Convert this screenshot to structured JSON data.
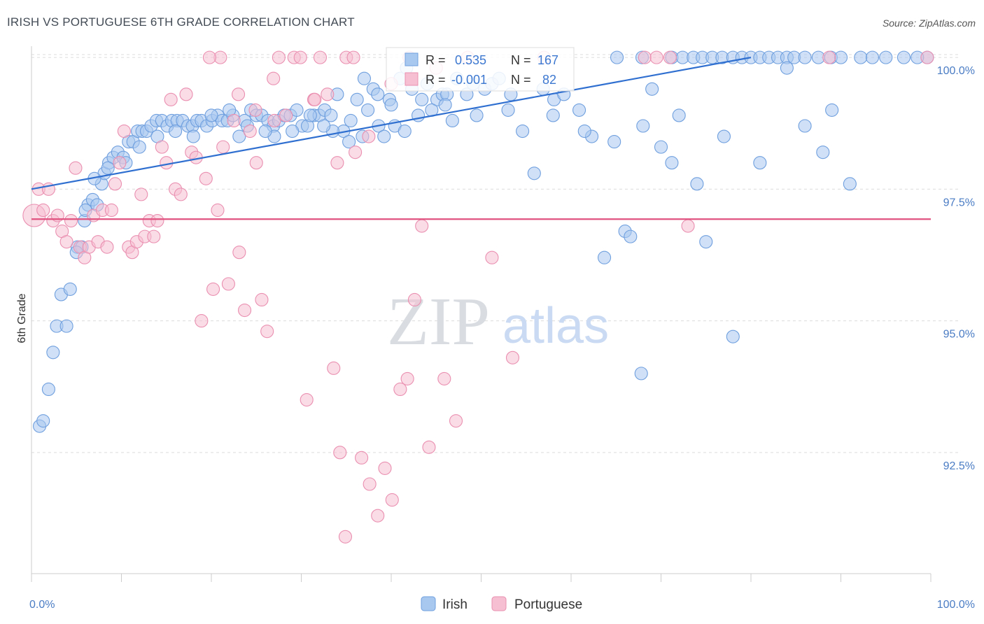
{
  "title": "IRISH VS PORTUGUESE 6TH GRADE CORRELATION CHART",
  "source": "Source: ZipAtlas.com",
  "watermark": {
    "zip": "ZIP",
    "atlas": "atlas"
  },
  "chart_data": {
    "type": "scatter",
    "title": "IRISH VS PORTUGUESE 6TH GRADE CORRELATION CHART",
    "xlabel": "",
    "ylabel": "6th Grade",
    "xlim": [
      0,
      100
    ],
    "ylim": [
      90.2,
      100.4
    ],
    "x_tick_labels": [
      "0.0%",
      "100.0%"
    ],
    "y_ticks": [
      {
        "value": 92.5,
        "label": "92.5%"
      },
      {
        "value": 95.0,
        "label": "95.0%"
      },
      {
        "value": 97.5,
        "label": "97.5%"
      },
      {
        "value": 100.0,
        "label": "100.0%"
      }
    ],
    "grid": true,
    "legend_placement": "top-center",
    "series": [
      {
        "name": "Irish",
        "color": "#a9c8f0",
        "edge": "#6f9fde",
        "R": "0.535",
        "N": "167",
        "trend": {
          "x": [
            0,
            80
          ],
          "y": [
            97.5,
            100.0
          ],
          "color": "#2f6fd0"
        },
        "points": [
          [
            0.9,
            93.0
          ],
          [
            1.3,
            93.1
          ],
          [
            1.9,
            93.7
          ],
          [
            2.4,
            94.4
          ],
          [
            2.8,
            94.9
          ],
          [
            3.3,
            95.5
          ],
          [
            3.9,
            94.9
          ],
          [
            4.3,
            95.6
          ],
          [
            5.1,
            96.4
          ],
          [
            5.6,
            96.4
          ],
          [
            5.9,
            96.9
          ],
          [
            6.3,
            97.2
          ],
          [
            6.8,
            97.3
          ],
          [
            7.3,
            97.2
          ],
          [
            7.8,
            97.6
          ],
          [
            8.1,
            97.8
          ],
          [
            8.6,
            98.0
          ],
          [
            9.1,
            98.1
          ],
          [
            9.6,
            98.2
          ],
          [
            10.2,
            98.1
          ],
          [
            10.8,
            98.4
          ],
          [
            11.3,
            98.4
          ],
          [
            11.8,
            98.6
          ],
          [
            12.3,
            98.6
          ],
          [
            12.8,
            98.6
          ],
          [
            13.3,
            98.7
          ],
          [
            13.9,
            98.8
          ],
          [
            14.5,
            98.8
          ],
          [
            15.1,
            98.7
          ],
          [
            15.6,
            98.8
          ],
          [
            16.2,
            98.8
          ],
          [
            16.8,
            98.8
          ],
          [
            17.4,
            98.7
          ],
          [
            17.9,
            98.7
          ],
          [
            18.4,
            98.8
          ],
          [
            18.9,
            98.8
          ],
          [
            19.5,
            98.7
          ],
          [
            20.1,
            98.8
          ],
          [
            20.7,
            98.9
          ],
          [
            21.2,
            98.8
          ],
          [
            21.8,
            98.8
          ],
          [
            22.4,
            98.9
          ],
          [
            23.1,
            98.5
          ],
          [
            23.7,
            98.8
          ],
          [
            24.4,
            99.0
          ],
          [
            25.0,
            98.9
          ],
          [
            25.6,
            98.9
          ],
          [
            26.3,
            98.8
          ],
          [
            26.9,
            98.7
          ],
          [
            27.5,
            98.8
          ],
          [
            28.1,
            98.9
          ],
          [
            28.8,
            98.9
          ],
          [
            29.5,
            99.0
          ],
          [
            30.1,
            98.7
          ],
          [
            30.7,
            98.7
          ],
          [
            31.4,
            98.9
          ],
          [
            32.0,
            98.9
          ],
          [
            32.6,
            99.0
          ],
          [
            33.3,
            98.9
          ],
          [
            34.0,
            99.3
          ],
          [
            34.7,
            98.6
          ],
          [
            35.3,
            98.4
          ],
          [
            36.2,
            99.2
          ],
          [
            36.8,
            98.5
          ],
          [
            37.4,
            99.0
          ],
          [
            38.0,
            99.4
          ],
          [
            38.6,
            98.7
          ],
          [
            39.2,
            98.5
          ],
          [
            39.8,
            99.2
          ],
          [
            40.4,
            98.7
          ],
          [
            41.0,
            99.6
          ],
          [
            41.7,
            99.8
          ],
          [
            42.3,
            99.4
          ],
          [
            43.4,
            99.2
          ],
          [
            44.0,
            99.5
          ],
          [
            45.1,
            99.2
          ],
          [
            45.7,
            99.3
          ],
          [
            46.2,
            99.3
          ],
          [
            46.8,
            98.8
          ],
          [
            47.3,
            99.6
          ],
          [
            48.4,
            99.3
          ],
          [
            49.1,
            99.5
          ],
          [
            50.4,
            99.4
          ],
          [
            51.2,
            99.5
          ],
          [
            52.0,
            99.6
          ],
          [
            53.3,
            99.3
          ],
          [
            54.6,
            98.6
          ],
          [
            55.9,
            97.8
          ],
          [
            56.9,
            99.4
          ],
          [
            58.1,
            99.2
          ],
          [
            59.2,
            99.3
          ],
          [
            60.9,
            99.0
          ],
          [
            62.3,
            98.5
          ],
          [
            63.7,
            96.2
          ],
          [
            65.1,
            100.0
          ],
          [
            66.0,
            96.7
          ],
          [
            66.6,
            96.6
          ],
          [
            67.9,
            100.0
          ],
          [
            69.0,
            99.4
          ],
          [
            70.0,
            98.3
          ],
          [
            71.2,
            100.0
          ],
          [
            72.4,
            100.0
          ],
          [
            73.6,
            100.0
          ],
          [
            74.6,
            100.0
          ],
          [
            75.7,
            100.0
          ],
          [
            76.8,
            100.0
          ],
          [
            78.0,
            100.0
          ],
          [
            79.0,
            100.0
          ],
          [
            80.0,
            100.0
          ],
          [
            81.0,
            100.0
          ],
          [
            82.0,
            100.0
          ],
          [
            83.0,
            100.0
          ],
          [
            84.0,
            100.0
          ],
          [
            84.8,
            100.0
          ],
          [
            86.0,
            100.0
          ],
          [
            87.5,
            100.0
          ],
          [
            88.9,
            100.0
          ],
          [
            90.0,
            100.0
          ],
          [
            91.0,
            97.6
          ],
          [
            92.2,
            100.0
          ],
          [
            93.5,
            100.0
          ],
          [
            95.0,
            100.0
          ],
          [
            64.8,
            98.4
          ],
          [
            67.8,
            94.0
          ],
          [
            74.0,
            97.6
          ],
          [
            77.0,
            98.5
          ],
          [
            71.2,
            98.0
          ],
          [
            61.5,
            98.6
          ],
          [
            58.0,
            98.9
          ],
          [
            97.0,
            100.0
          ],
          [
            89.0,
            99.0
          ],
          [
            84.0,
            99.8
          ],
          [
            78.0,
            94.7
          ],
          [
            75.0,
            96.5
          ],
          [
            81.0,
            98.0
          ],
          [
            68.0,
            98.7
          ],
          [
            72.0,
            98.9
          ],
          [
            86.0,
            98.7
          ],
          [
            88.0,
            98.2
          ],
          [
            53.0,
            99.0
          ],
          [
            49.5,
            98.9
          ],
          [
            46.0,
            99.1
          ],
          [
            44.5,
            99.0
          ],
          [
            43.0,
            98.9
          ],
          [
            41.5,
            98.6
          ],
          [
            40.0,
            99.1
          ],
          [
            38.5,
            99.3
          ],
          [
            37.0,
            99.6
          ],
          [
            35.5,
            98.8
          ],
          [
            33.5,
            98.6
          ],
          [
            32.5,
            98.7
          ],
          [
            31.0,
            98.9
          ],
          [
            29.0,
            98.6
          ],
          [
            27.0,
            98.5
          ],
          [
            26.0,
            98.6
          ],
          [
            24.0,
            98.7
          ],
          [
            22.0,
            99.0
          ],
          [
            20.0,
            98.9
          ],
          [
            18.0,
            98.5
          ],
          [
            16.0,
            98.6
          ],
          [
            14.0,
            98.5
          ],
          [
            12.0,
            98.3
          ],
          [
            10.5,
            98.0
          ],
          [
            8.5,
            97.9
          ],
          [
            7.0,
            97.7
          ],
          [
            6.0,
            97.1
          ],
          [
            5.0,
            96.3
          ],
          [
            99.6,
            100.0
          ],
          [
            98.5,
            100.0
          ]
        ]
      },
      {
        "name": "Portuguese",
        "color": "#f6c0d2",
        "edge": "#ea8fb0",
        "R": "-0.001",
        "N": "82",
        "trend": {
          "x": [
            0,
            100
          ],
          "y": [
            96.93,
            96.93
          ],
          "color": "#e0527f"
        },
        "points": [
          [
            0.3,
            97.0
          ],
          [
            0.8,
            97.5
          ],
          [
            1.3,
            97.1
          ],
          [
            1.9,
            97.5
          ],
          [
            2.4,
            96.9
          ],
          [
            2.9,
            97.0
          ],
          [
            3.4,
            96.7
          ],
          [
            3.9,
            96.5
          ],
          [
            4.4,
            96.9
          ],
          [
            4.9,
            97.9
          ],
          [
            5.4,
            96.4
          ],
          [
            5.9,
            96.2
          ],
          [
            6.4,
            96.4
          ],
          [
            6.9,
            97.0
          ],
          [
            7.4,
            96.5
          ],
          [
            7.9,
            97.1
          ],
          [
            8.4,
            96.4
          ],
          [
            8.9,
            97.1
          ],
          [
            9.3,
            97.6
          ],
          [
            9.8,
            98.0
          ],
          [
            10.3,
            98.6
          ],
          [
            10.8,
            96.4
          ],
          [
            11.2,
            96.3
          ],
          [
            11.7,
            96.5
          ],
          [
            12.2,
            97.4
          ],
          [
            12.6,
            96.6
          ],
          [
            13.1,
            96.9
          ],
          [
            13.6,
            96.6
          ],
          [
            14.0,
            96.9
          ],
          [
            14.5,
            98.3
          ],
          [
            15.0,
            98.0
          ],
          [
            15.5,
            99.2
          ],
          [
            16.0,
            97.5
          ],
          [
            16.6,
            97.4
          ],
          [
            17.2,
            99.3
          ],
          [
            17.8,
            98.2
          ],
          [
            18.3,
            98.1
          ],
          [
            18.9,
            95.0
          ],
          [
            19.4,
            97.7
          ],
          [
            20.2,
            95.6
          ],
          [
            20.7,
            97.1
          ],
          [
            21.3,
            98.3
          ],
          [
            21.9,
            95.7
          ],
          [
            22.5,
            98.8
          ],
          [
            23.1,
            96.3
          ],
          [
            23.7,
            95.2
          ],
          [
            24.3,
            98.6
          ],
          [
            24.9,
            99.0
          ],
          [
            25.6,
            95.4
          ],
          [
            26.2,
            94.8
          ],
          [
            26.9,
            99.6
          ],
          [
            27.5,
            100.0
          ],
          [
            28.3,
            98.9
          ],
          [
            29.2,
            100.0
          ],
          [
            29.9,
            100.0
          ],
          [
            30.6,
            93.5
          ],
          [
            31.4,
            99.2
          ],
          [
            32.1,
            100.0
          ],
          [
            32.9,
            99.3
          ],
          [
            33.6,
            94.1
          ],
          [
            34.3,
            92.5
          ],
          [
            35.0,
            100.0
          ],
          [
            35.8,
            100.0
          ],
          [
            36.7,
            92.4
          ],
          [
            37.6,
            91.9
          ],
          [
            38.5,
            91.3
          ],
          [
            39.3,
            92.2
          ],
          [
            40.1,
            91.6
          ],
          [
            41.0,
            93.7
          ],
          [
            41.8,
            93.9
          ],
          [
            42.6,
            95.4
          ],
          [
            43.4,
            96.8
          ],
          [
            44.2,
            92.6
          ],
          [
            45.0,
            99.8
          ],
          [
            45.9,
            93.9
          ],
          [
            47.2,
            93.1
          ],
          [
            48.5,
            100.0
          ],
          [
            51.2,
            96.2
          ],
          [
            53.5,
            94.3
          ],
          [
            57.0,
            100.0
          ],
          [
            68.2,
            100.0
          ],
          [
            69.5,
            100.0
          ],
          [
            71.0,
            100.0
          ],
          [
            73.0,
            96.8
          ],
          [
            88.7,
            100.0
          ],
          [
            99.6,
            100.0
          ],
          [
            37.5,
            98.5
          ],
          [
            36.0,
            98.2
          ],
          [
            34.0,
            98.0
          ],
          [
            31.5,
            99.2
          ],
          [
            27.0,
            98.8
          ],
          [
            25.0,
            98.0
          ],
          [
            23.0,
            99.3
          ],
          [
            21.0,
            100.0
          ],
          [
            19.8,
            100.0
          ],
          [
            40.0,
            99.5
          ],
          [
            42.0,
            100.0
          ],
          [
            34.9,
            90.9
          ]
        ]
      }
    ]
  }
}
